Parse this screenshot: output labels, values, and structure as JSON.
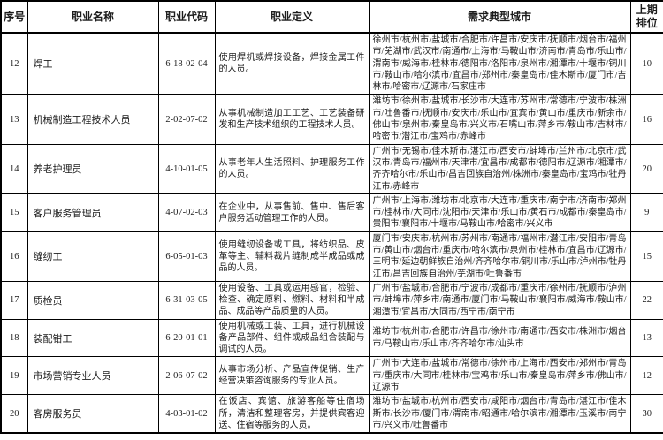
{
  "headers": [
    "序号",
    "职业名称",
    "职业代码",
    "职业定义",
    "需求典型城市",
    "上期排位"
  ],
  "rows": [
    {
      "no": "12",
      "name": "焊工",
      "code": "6-18-02-04",
      "definition": "使用焊机或焊接设备，焊接金属工件的人员。",
      "cities": "徐州市/杭州市/盐城市/合肥市/许昌市/安庆市/抚顺市/烟台市/福州市/芜湖市/武汉市/南通市/上海市/马鞍山市/济南市/青岛市/乐山市/渭南市/威海市/桂林市/德阳市/洛阳市/泉州市/湘潭市/十堰市/铜川市/鞍山市/哈尔滨市/宜昌市/郑州市/秦皇岛市/佳木斯市/厦门市/吉林市/哈密市/辽源市/石家庄市",
      "prev_rank": "10"
    },
    {
      "no": "13",
      "name": "机械制造工程技术人员",
      "code": "2-02-07-02",
      "definition": "从事机械制造加工工艺、工艺装备研发和生产技术组织的工程技术人员。",
      "cities": "潍坊市/徐州市/盐城市/长沙市/大连市/苏州市/常德市/宁波市/株洲市/吐鲁番市/抚顺市/安庆市/乐山市/宜宾市/黄山市/重庆市/新余市/佛山市/泉州市/秦皇岛市/兴义市/石嘴山市/萍乡市/鞍山市/吉林市/哈密市/潜江市/宝鸡市/赤峰市",
      "prev_rank": "16"
    },
    {
      "no": "14",
      "name": "养老护理员",
      "code": "4-10-01-05",
      "definition": "从事老年人生活照料、护理服务工作的人员。",
      "cities": "广州市/无锡市/佳木斯市/湛江市/西安市/蚌埠市/兰州市/北京市/武汉市/青岛市/福州市/天津市/宜昌市/成都市/德阳市/辽源市/湘潭市/齐齐哈尔市/乐山市/昌吉回族自治州/株洲市/秦皇岛市/宝鸡市/牡丹江市/赤峰市",
      "prev_rank": "20"
    },
    {
      "no": "15",
      "name": "客户服务管理员",
      "code": "4-07-02-03",
      "definition": "在企业中，从事售前、售中、售后客户服务活动管理工作的人员。",
      "cities": "广州市/上海市/潍坊市/北京市/大连市/重庆市/南宁市/济南市/郑州市/桂林市/大同市/沈阳市/天津市/乐山市/黄石市/成都市/秦皇岛市/贵阳市/襄阳市/十堰市/马鞍山市/哈密市/兴义市",
      "prev_rank": "9"
    },
    {
      "no": "16",
      "name": "缝纫工",
      "code": "6-05-01-03",
      "definition": "使用缝纫设备或工具，将纺织品、皮革等主、辅料裁片缝制成半成品或成品的人员。",
      "cities": "厦门市/安庆市/杭州市/苏州市/南通市/福州市/潜江市/安阳市/青岛市/黄山市/烟台市/重庆市/哈尔滨市/泉州市/桂林市/宜昌市/辽源市/三明市/延边朝鲜族自治州/齐齐哈尔市/铜川市/乐山市/泸州市/牡丹江市/昌吉回族自治州/芜湖市/吐鲁番市",
      "prev_rank": "15"
    },
    {
      "no": "17",
      "name": "质检员",
      "code": "6-31-03-05",
      "definition": "使用设备、工具或运用感官，检验、检查、确定原料、燃料、材料和半成品、成品等产品质量的人员。",
      "cities": "广州市/盐城市/合肥市/宁波市/成都市/重庆市/徐州市/抚顺市/泸州市/蚌埠市/萍乡市/南通市/厦门市/马鞍山市/襄阳市/威海市/鞍山市/湘潭市/宜昌市/大同市/西宁市/南宁市",
      "prev_rank": "22"
    },
    {
      "no": "18",
      "name": "装配钳工",
      "code": "6-20-01-01",
      "definition": "使用机械或工装、工具，进行机械设备产品部件、组件或成品组合装配与调试的人员。",
      "cities": "潍坊市/杭州市/合肥市/许昌市/徐州市/南通市/西安市/株洲市/烟台市/马鞍山市/乐山市/齐齐哈尔市/汕头市",
      "prev_rank": "13"
    },
    {
      "no": "19",
      "name": "市场营销专业人员",
      "code": "2-06-07-02",
      "definition": "从事市场分析、产品宣传促销、生产经营决策咨询服务的专业人员。",
      "cities": "广州市/大连市/盐城市/常德市/徐州市/上海市/西安市/郑州市/青岛市/重庆市/大同市/桂林市/宝鸡市/乐山市/秦皇岛市/萍乡市/佛山市/辽源市",
      "prev_rank": "12"
    },
    {
      "no": "20",
      "name": "客房服务员",
      "code": "4-03-01-02",
      "definition": "在饭店、宾馆、旅游客船等住宿场所，清洁和整理客房，并提供宾客迎送、住宿等服务的人员。",
      "cities": "潍坊市/盐城市/杭州市/西安市/咸阳市/烟台市/青岛市/湛江市/佳木斯市/长沙市/厦门市/渭南市/昭通市/哈尔滨市/湘潭市/玉溪市/南宁市/兴义市/吐鲁番市",
      "prev_rank": "30"
    }
  ]
}
